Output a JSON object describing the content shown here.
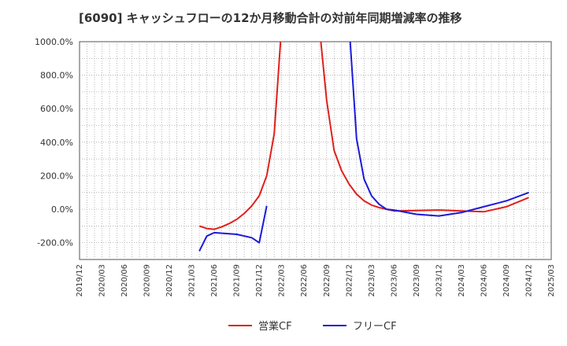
{
  "chart_data": {
    "type": "line",
    "title": "[6090]  キャッシュフローの12か月移動合計の対前年同期増減率の推移",
    "xlabel": "",
    "ylabel": "",
    "ylim": [
      -300,
      1000
    ],
    "y_ticks": [
      -200,
      0,
      200,
      400,
      600,
      800,
      1000
    ],
    "y_tick_labels": [
      "-200.0%",
      "0.0%",
      "200.0%",
      "400.0%",
      "600.0%",
      "800.0%",
      "1000.0%"
    ],
    "x_tick_labels": [
      "2019/12",
      "2020/03",
      "2020/06",
      "2020/09",
      "2020/12",
      "2021/03",
      "2021/06",
      "2021/09",
      "2021/12",
      "2022/03",
      "2022/06",
      "2022/09",
      "2022/12",
      "2023/03",
      "2023/06",
      "2023/09",
      "2023/12",
      "2024/03",
      "2024/06",
      "2024/09",
      "2024/12",
      "2025/03"
    ],
    "x_start": "2019/12",
    "x_end": "2025/03",
    "grid": true,
    "legend_position": "bottom",
    "series": [
      {
        "name": "営業CF",
        "color": "#e0201b",
        "points": [
          [
            "2021/04",
            -100
          ],
          [
            "2021/05",
            -115
          ],
          [
            "2021/06",
            -120
          ],
          [
            "2021/07",
            -105
          ],
          [
            "2021/08",
            -85
          ],
          [
            "2021/09",
            -60
          ],
          [
            "2021/10",
            -25
          ],
          [
            "2021/11",
            20
          ],
          [
            "2021/12",
            80
          ],
          [
            "2022/01",
            200
          ],
          [
            "2022/02",
            450
          ],
          [
            "2022/03",
            1100
          ],
          [
            "2022/08",
            1100
          ],
          [
            "2022/09",
            650
          ],
          [
            "2022/10",
            350
          ],
          [
            "2022/11",
            230
          ],
          [
            "2022/12",
            150
          ],
          [
            "2023/01",
            90
          ],
          [
            "2023/02",
            50
          ],
          [
            "2023/03",
            25
          ],
          [
            "2023/04",
            10
          ],
          [
            "2023/05",
            0
          ],
          [
            "2023/06",
            -10
          ],
          [
            "2023/09",
            -8
          ],
          [
            "2023/12",
            -5
          ],
          [
            "2024/03",
            -10
          ],
          [
            "2024/06",
            -15
          ],
          [
            "2024/09",
            15
          ],
          [
            "2024/12",
            70
          ]
        ]
      },
      {
        "name": "フリーCF",
        "color": "#1a1adb",
        "points": [
          [
            "2021/04",
            -250
          ],
          [
            "2021/05",
            -160
          ],
          [
            "2021/06",
            -140
          ],
          [
            "2021/09",
            -150
          ],
          [
            "2021/11",
            -170
          ],
          [
            "2021/12",
            -200
          ],
          [
            "2022/01",
            20
          ],
          null,
          [
            "2022/12",
            1100
          ],
          [
            "2023/01",
            420
          ],
          [
            "2023/02",
            180
          ],
          [
            "2023/03",
            80
          ],
          [
            "2023/04",
            30
          ],
          [
            "2023/05",
            0
          ],
          [
            "2023/06",
            -5
          ],
          [
            "2023/09",
            -30
          ],
          [
            "2023/12",
            -40
          ],
          [
            "2024/03",
            -20
          ],
          [
            "2024/06",
            15
          ],
          [
            "2024/09",
            50
          ],
          [
            "2024/12",
            100
          ]
        ]
      }
    ]
  }
}
